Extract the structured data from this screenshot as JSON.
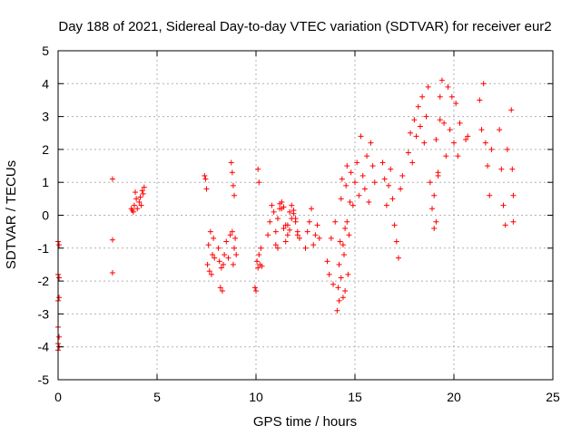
{
  "chart_data": {
    "type": "scatter",
    "title": "Day 188 of 2021, Sidereal Day-to-day VTEC variation (SDTVAR) for receiver eur2",
    "xlabel": "GPS time / hours",
    "ylabel": "SDTVAR / TECUs",
    "xlim": [
      0,
      25
    ],
    "ylim": [
      -5,
      5
    ],
    "xticks": [
      "0",
      "5",
      "10",
      "15",
      "20",
      "25"
    ],
    "yticks": [
      "-5",
      "-4",
      "-3",
      "-2",
      "-1",
      "0",
      "1",
      "2",
      "3",
      "4",
      "5"
    ],
    "grid": true,
    "marker": "+",
    "color": "#ff0000",
    "series": [
      {
        "name": "SDTVAR",
        "x": [
          0.0,
          0.0,
          0.0,
          0.0,
          0.0,
          0.0,
          0.05,
          0.05,
          0.05,
          0.05,
          0.05,
          2.75,
          2.75,
          2.75,
          3.7,
          3.75,
          3.8,
          3.85,
          3.9,
          3.95,
          4.0,
          4.1,
          4.15,
          4.2,
          4.25,
          4.3,
          4.35,
          7.4,
          7.45,
          7.5,
          7.55,
          7.6,
          7.65,
          7.7,
          7.75,
          7.8,
          7.85,
          7.9,
          8.1,
          8.15,
          8.2,
          8.25,
          8.3,
          8.35,
          8.4,
          8.5,
          8.6,
          8.7,
          8.8,
          8.85,
          8.9,
          8.95,
          9.0,
          8.75,
          8.8,
          8.85,
          8.9,
          9.95,
          10.0,
          10.05,
          10.1,
          10.15,
          10.2,
          10.25,
          10.3,
          10.1,
          10.15,
          10.6,
          10.7,
          10.8,
          10.9,
          11.0,
          11.1,
          11.2,
          11.3,
          11.4,
          11.5,
          11.6,
          11.7,
          11.8,
          11.9,
          12.0,
          12.1,
          12.2,
          11.0,
          11.1,
          11.2,
          11.3,
          11.4,
          11.5,
          11.6,
          11.7,
          11.8,
          11.9,
          12.0,
          12.1,
          12.5,
          12.6,
          12.7,
          12.8,
          12.9,
          13.0,
          13.1,
          13.2,
          13.6,
          13.7,
          13.8,
          13.9,
          14.0,
          14.1,
          14.15,
          14.2,
          14.25,
          14.3,
          14.35,
          14.4,
          14.45,
          14.5,
          14.55,
          14.6,
          14.65,
          14.7,
          14.75,
          14.8,
          14.2,
          14.3,
          14.4,
          14.5,
          14.6,
          14.9,
          15.0,
          15.1,
          15.2,
          15.3,
          15.4,
          15.5,
          15.6,
          15.7,
          15.8,
          15.9,
          16.0,
          16.4,
          16.5,
          16.6,
          16.7,
          16.8,
          16.9,
          17.0,
          17.1,
          17.2,
          17.3,
          17.4,
          17.7,
          17.8,
          17.9,
          18.0,
          18.1,
          18.2,
          18.3,
          18.4,
          18.5,
          18.6,
          18.7,
          18.8,
          18.9,
          19.0,
          19.1,
          19.2,
          19.3,
          19.4,
          19.5,
          19.6,
          19.0,
          19.1,
          19.2,
          19.3,
          19.7,
          19.8,
          19.9,
          20.0,
          20.1,
          20.2,
          20.3,
          20.6,
          20.7,
          21.3,
          21.4,
          21.5,
          21.6,
          21.7,
          21.8,
          21.9,
          22.3,
          22.4,
          22.5,
          22.6,
          22.7,
          22.9,
          22.95,
          23.0,
          23.0
        ],
        "y": [
          -0.8,
          -1.8,
          -2.6,
          -3.4,
          -3.9,
          -4.1,
          -0.9,
          -1.9,
          -2.5,
          -3.7,
          -4.0,
          1.1,
          -0.75,
          -1.75,
          0.2,
          0.15,
          0.1,
          0.3,
          0.7,
          0.5,
          0.2,
          0.4,
          0.55,
          0.3,
          0.75,
          0.65,
          0.85,
          1.2,
          1.1,
          0.8,
          -1.5,
          -0.9,
          -1.7,
          -0.5,
          -1.8,
          -1.2,
          -0.7,
          -1.3,
          -1.0,
          -1.4,
          -2.2,
          -1.6,
          -2.3,
          -1.5,
          -1.2,
          -0.8,
          -1.3,
          -0.6,
          -0.5,
          -1.5,
          -1.0,
          -0.7,
          -1.2,
          1.6,
          1.3,
          0.9,
          0.6,
          -2.2,
          -2.3,
          -1.4,
          -1.6,
          -1.2,
          -1.5,
          -1.0,
          -1.55,
          1.4,
          1.0,
          -0.6,
          -0.2,
          0.3,
          0.1,
          -0.9,
          -1.0,
          0.35,
          0.2,
          -0.4,
          -0.8,
          -0.3,
          0.1,
          0.3,
          0.15,
          -0.1,
          -0.5,
          -0.7,
          -0.5,
          -0.1,
          0.2,
          0.4,
          0.25,
          -0.3,
          -0.6,
          -0.45,
          -0.1,
          0.05,
          -0.2,
          -0.6,
          -1.0,
          -0.5,
          -0.2,
          0.2,
          -0.9,
          -0.6,
          -0.3,
          -0.7,
          -1.4,
          -1.8,
          -0.7,
          -2.1,
          -0.2,
          -2.9,
          -2.2,
          -1.5,
          -0.8,
          0.5,
          1.1,
          -2.5,
          -1.2,
          -0.4,
          0.9,
          1.5,
          -1.8,
          -0.6,
          0.4,
          1.3,
          -2.6,
          -1.9,
          -0.9,
          -2.3,
          -0.2,
          0.3,
          1.0,
          1.6,
          0.6,
          2.4,
          1.2,
          0.8,
          1.8,
          0.4,
          2.2,
          1.5,
          1.0,
          1.6,
          1.1,
          0.3,
          0.9,
          1.4,
          0.5,
          -0.3,
          -0.8,
          -1.3,
          0.8,
          1.2,
          1.9,
          2.5,
          1.6,
          2.9,
          2.4,
          3.3,
          2.7,
          3.6,
          2.2,
          3.0,
          3.9,
          1.0,
          0.2,
          -0.4,
          2.3,
          1.3,
          3.6,
          4.1,
          2.8,
          1.8,
          0.6,
          -0.2,
          1.2,
          2.9,
          3.9,
          2.6,
          3.6,
          2.2,
          3.4,
          1.8,
          2.8,
          2.3,
          2.4,
          3.5,
          2.6,
          4.0,
          2.2,
          1.5,
          0.6,
          2.0,
          2.6,
          1.4,
          0.3,
          -0.3,
          2.0,
          3.2,
          1.4,
          0.6,
          -0.2
        ]
      }
    ]
  }
}
